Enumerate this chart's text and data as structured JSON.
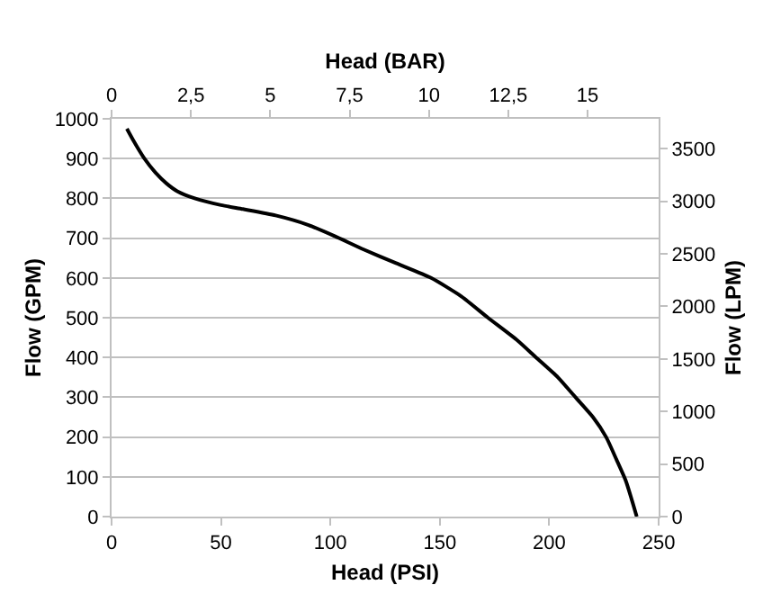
{
  "chart_data": {
    "type": "line",
    "xlabel": "Head (PSI)",
    "ylabel": "Flow (GPM)",
    "x2label": "Head (BAR)",
    "y2label": "Flow (LPM)",
    "x": [
      7,
      10,
      15,
      20,
      25,
      30,
      38,
      50,
      60,
      75,
      90,
      102,
      115,
      130,
      146,
      160,
      172,
      185,
      194,
      204,
      212,
      220,
      226,
      231,
      235,
      240
    ],
    "series": [
      {
        "color": "#000000",
        "values": [
          975,
          945,
          900,
          865,
          838,
          818,
          800,
          783,
          773,
          757,
          733,
          705,
          672,
          637,
          600,
          553,
          500,
          445,
          400,
          350,
          300,
          250,
          200,
          140,
          90,
          0
        ]
      }
    ],
    "xlim": [
      0,
      250
    ],
    "xticks": [
      0,
      50,
      100,
      150,
      200,
      250
    ],
    "ylim": [
      0,
      1000
    ],
    "yticks": [
      0,
      100,
      200,
      300,
      400,
      500,
      600,
      700,
      800,
      900,
      1000
    ],
    "x2lim": [
      0,
      17.24
    ],
    "x2ticks": [
      0,
      {
        "value": 2.5,
        "label": "2,5"
      },
      5,
      {
        "value": 7.5,
        "label": "7,5"
      },
      10,
      {
        "value": 12.5,
        "label": "12,5"
      },
      15
    ],
    "y2lim": [
      0,
      3785
    ],
    "y2ticks": [
      0,
      500,
      1000,
      1500,
      2000,
      2500,
      3000,
      3500
    ],
    "grid": "y",
    "marker": "none",
    "line_style": "solid"
  }
}
